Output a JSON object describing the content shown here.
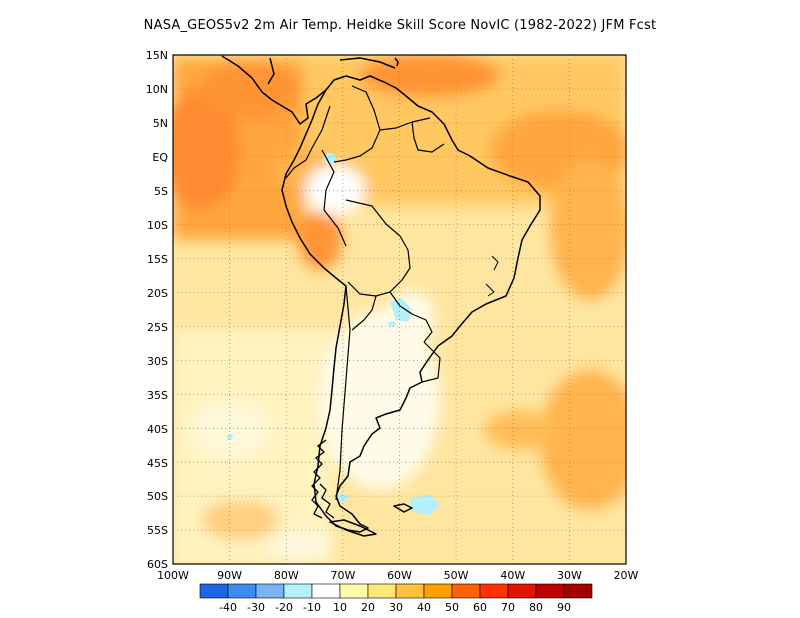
{
  "title": "NASA_GEOS5v2  2m Air Temp. Heidke Skill Score NovIC (1982-2022) JFM Fcst",
  "map": {
    "lon_range": [
      -100,
      -20
    ],
    "lat_range": [
      -60,
      15
    ],
    "lat_ticks": [
      "15N",
      "10N",
      "5N",
      "EQ",
      "5S",
      "10S",
      "15S",
      "20S",
      "25S",
      "30S",
      "35S",
      "40S",
      "45S",
      "50S",
      "55S",
      "60S"
    ],
    "lon_ticks": [
      "100W",
      "90W",
      "80W",
      "70W",
      "60W",
      "50W",
      "40W",
      "30W",
      "20W"
    ],
    "grid": "dotted"
  },
  "colorbar": {
    "labels": [
      "-40",
      "-30",
      "-20",
      "-10",
      "10",
      "20",
      "30",
      "40",
      "50",
      "60",
      "70",
      "80",
      "90"
    ],
    "colors": [
      "#1e64e6",
      "#3c8cf0",
      "#78b4f5",
      "#b4f0fa",
      "#ffffff",
      "#fffaaa",
      "#ffe878",
      "#ffc03c",
      "#ffa000",
      "#ff6000",
      "#ff3200",
      "#e11400",
      "#c00000",
      "#a50000"
    ]
  }
}
